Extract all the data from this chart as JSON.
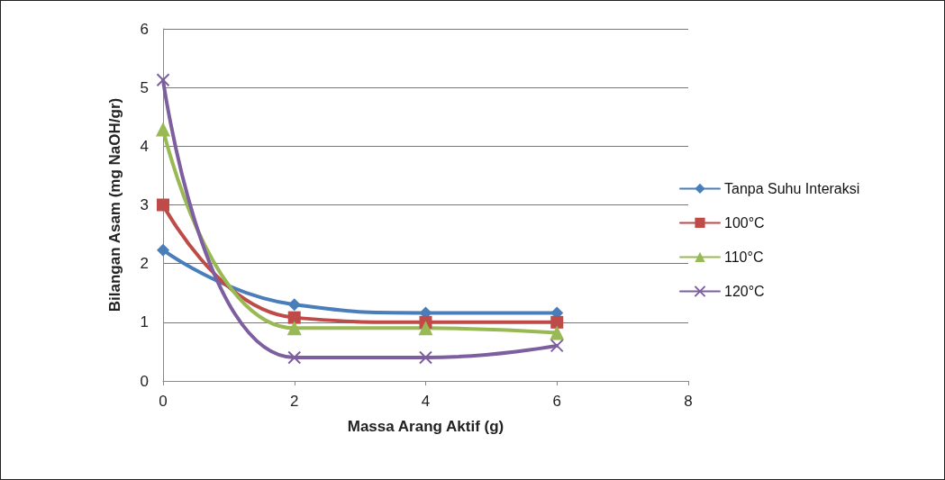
{
  "chart_data": {
    "type": "line",
    "xlabel": "Massa Arang Aktif (g)",
    "ylabel": "Bilangan Asam (mg NaOH/gr)",
    "x": [
      0,
      2,
      4,
      6
    ],
    "xlim": [
      0,
      8
    ],
    "xticks": [
      0,
      2,
      4,
      6,
      8
    ],
    "ylim": [
      0,
      6
    ],
    "yticks": [
      0,
      1,
      2,
      3,
      4,
      5,
      6
    ],
    "grid": "y",
    "legend": "right",
    "series": [
      {
        "name": "Tanpa Suhu Interaksi",
        "color": "#4a7ebb",
        "marker": "diamond",
        "values": [
          2.23,
          1.3,
          1.16,
          1.16
        ]
      },
      {
        "name": "100°C",
        "color": "#be4b48",
        "marker": "square",
        "values": [
          3.0,
          1.08,
          1.0,
          1.0
        ]
      },
      {
        "name": "110°C",
        "color": "#98b954",
        "marker": "triangle",
        "values": [
          4.29,
          0.9,
          0.9,
          0.82
        ]
      },
      {
        "name": "120°C",
        "color": "#7d5fa0",
        "marker": "cross",
        "values": [
          5.13,
          0.4,
          0.4,
          0.6
        ]
      }
    ]
  }
}
